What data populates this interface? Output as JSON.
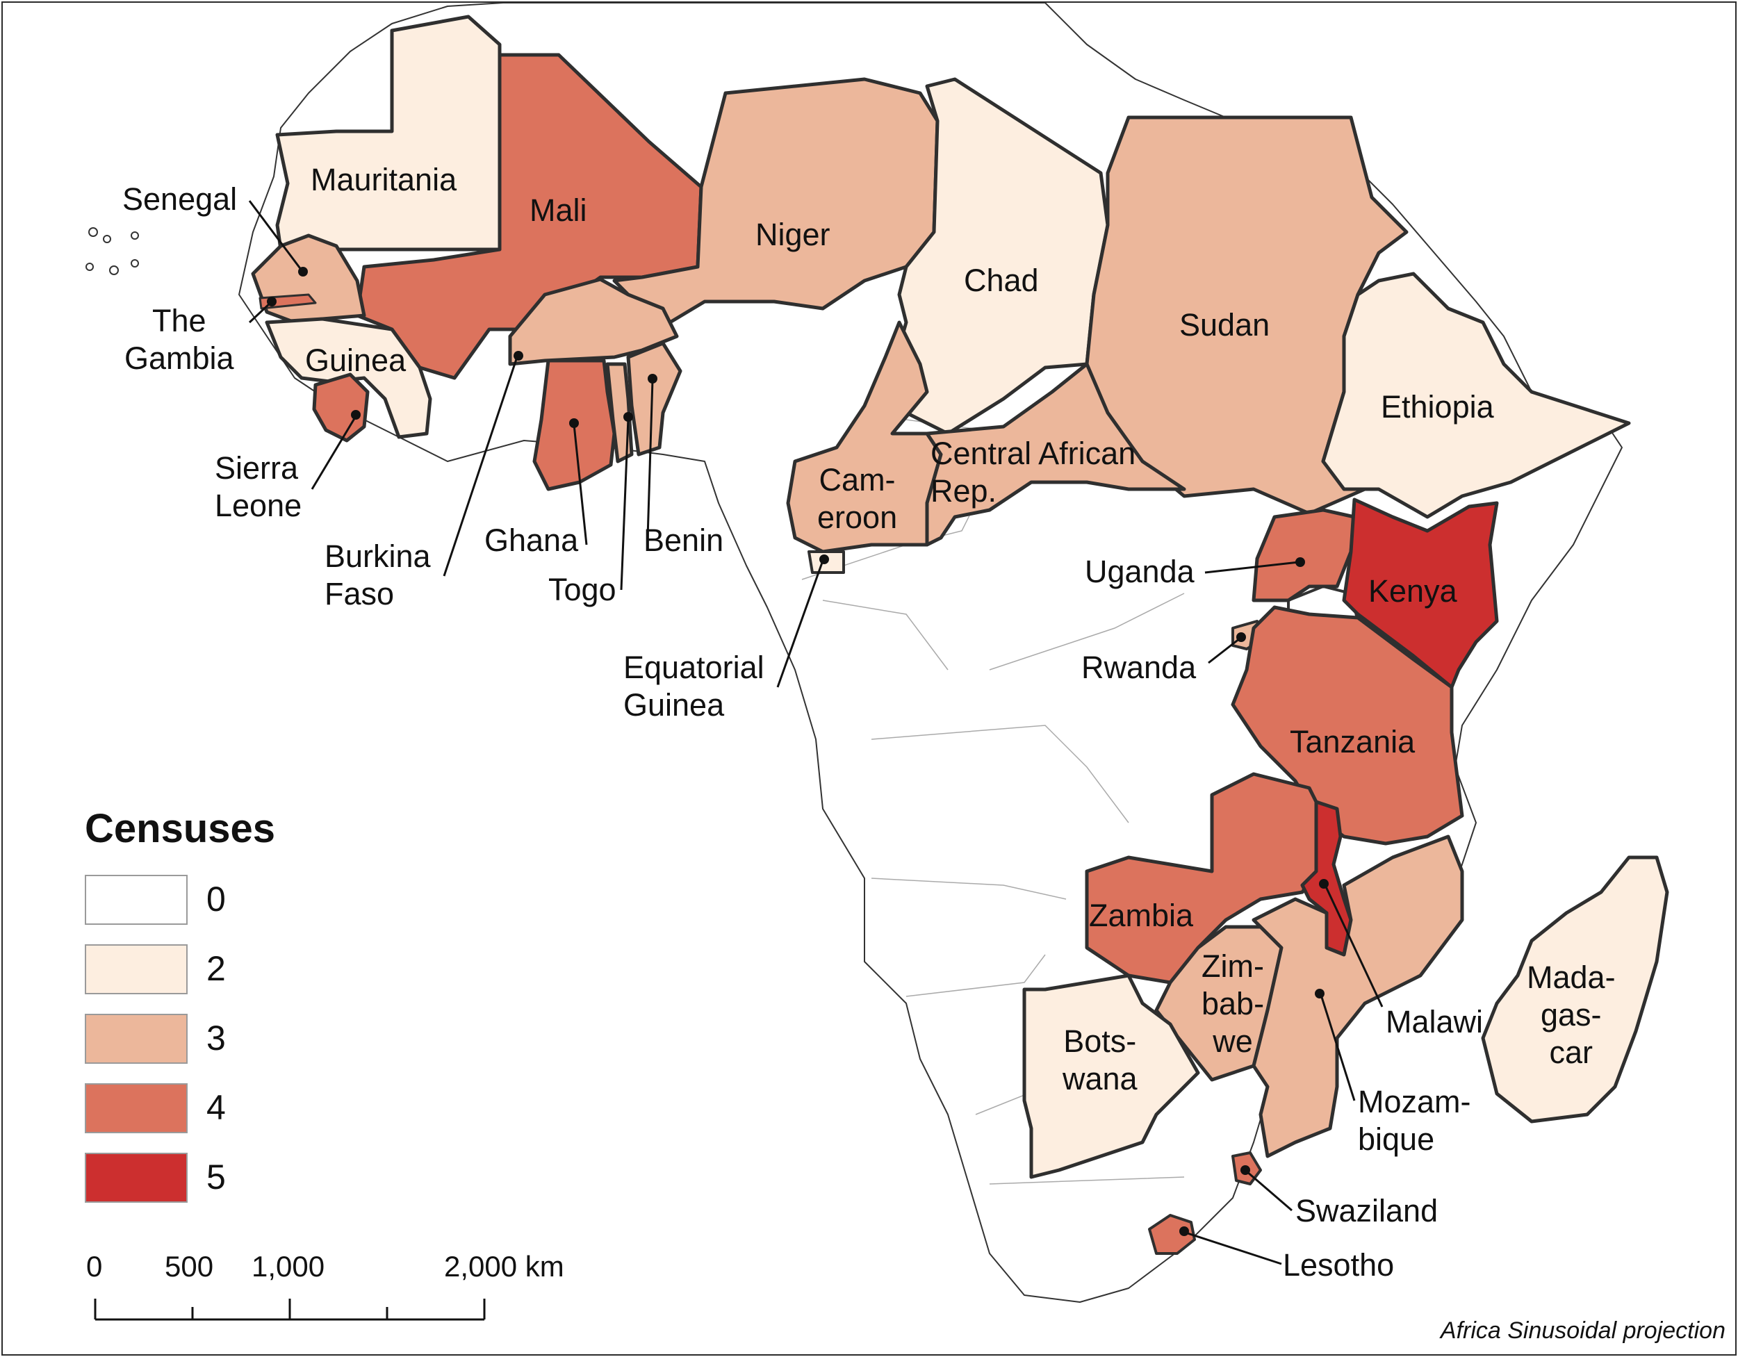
{
  "legend": {
    "title": "Censuses",
    "classes": [
      {
        "label": "0",
        "color": "#ffffff"
      },
      {
        "label": "2",
        "color": "#fdeee0"
      },
      {
        "label": "3",
        "color": "#ecb79b"
      },
      {
        "label": "4",
        "color": "#dc735d"
      },
      {
        "label": "5",
        "color": "#cc2f2f"
      }
    ]
  },
  "scale_bar": {
    "ticks": [
      "0",
      "500",
      "1,000",
      "2,000 km"
    ]
  },
  "projection": "Africa Sinusoidal projection",
  "countries": [
    {
      "key": "mauritania",
      "name": "Mauritania",
      "censuses": 2
    },
    {
      "key": "mali",
      "name": "Mali",
      "censuses": 4
    },
    {
      "key": "niger",
      "name": "Niger",
      "censuses": 3
    },
    {
      "key": "chad",
      "name": "Chad",
      "censuses": 2
    },
    {
      "key": "sudan",
      "name": "Sudan",
      "censuses": 3
    },
    {
      "key": "ethiopia",
      "name": "Ethiopia",
      "censuses": 2
    },
    {
      "key": "senegal",
      "name": "Senegal",
      "censuses": 3
    },
    {
      "key": "gambia",
      "name": "The\nGambia",
      "censuses": 4
    },
    {
      "key": "guinea",
      "name": "Guinea",
      "censuses": 2
    },
    {
      "key": "sierra_leone",
      "name": "Sierra\nLeone",
      "censuses": 4
    },
    {
      "key": "burkina_faso",
      "name": "Burkina\nFaso",
      "censuses": 3
    },
    {
      "key": "ghana",
      "name": "Ghana",
      "censuses": 4
    },
    {
      "key": "togo",
      "name": "Togo",
      "censuses": 3
    },
    {
      "key": "benin",
      "name": "Benin",
      "censuses": 3
    },
    {
      "key": "cameroon",
      "name": "Cam-\neroon",
      "censuses": 3
    },
    {
      "key": "central_african_rep",
      "name": "Central African\nRep.",
      "censuses": 3
    },
    {
      "key": "equatorial_guinea",
      "name": "Equatorial\nGuinea",
      "censuses": 2
    },
    {
      "key": "uganda",
      "name": "Uganda",
      "censuses": 4
    },
    {
      "key": "kenya",
      "name": "Kenya",
      "censuses": 5
    },
    {
      "key": "rwanda",
      "name": "Rwanda",
      "censuses": 3
    },
    {
      "key": "tanzania",
      "name": "Tanzania",
      "censuses": 4
    },
    {
      "key": "zambia",
      "name": "Zambia",
      "censuses": 4
    },
    {
      "key": "malawi",
      "name": "Malawi",
      "censuses": 5
    },
    {
      "key": "zimbabwe",
      "name": "Zim-\nbab-\nwe",
      "censuses": 3
    },
    {
      "key": "mozambique",
      "name": "Mozam-\nbique",
      "censuses": 3
    },
    {
      "key": "botswana",
      "name": "Bots-\nwana",
      "censuses": 2
    },
    {
      "key": "madagascar",
      "name": "Mada-\ngas-\ncar",
      "censuses": 2
    },
    {
      "key": "swaziland",
      "name": "Swaziland",
      "censuses": 4
    },
    {
      "key": "lesotho",
      "name": "Lesotho",
      "censuses": 4
    }
  ]
}
